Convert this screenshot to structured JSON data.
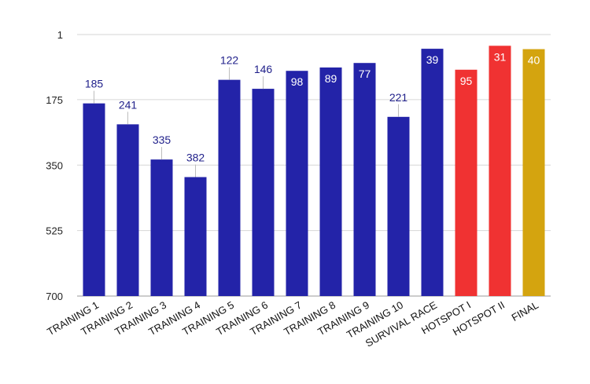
{
  "chart_data": {
    "type": "bar",
    "title": "",
    "xlabel": "",
    "ylabel": "",
    "y_inverted": true,
    "ylim": [
      1,
      700
    ],
    "yticks": [
      1,
      175,
      350,
      525,
      700
    ],
    "grid": true,
    "categories": [
      "TRAINING 1",
      "TRAINING 2",
      "TRAINING 3",
      "TRAINING 4",
      "TRAINING 5",
      "TRAINING 6",
      "TRAINING 7",
      "TRAINING 8",
      "TRAINING 9",
      "TRAINING 10",
      "SURVIVAL RACE",
      "HOTSPOT I",
      "HOTSPOT II",
      "FINAL"
    ],
    "values": [
      185,
      241,
      335,
      382,
      122,
      146,
      98,
      89,
      77,
      221,
      39,
      95,
      31,
      40
    ],
    "colors": [
      "#2323a8",
      "#2323a8",
      "#2323a8",
      "#2323a8",
      "#2323a8",
      "#2323a8",
      "#2323a8",
      "#2323a8",
      "#2323a8",
      "#2323a8",
      "#2323a8",
      "#f03232",
      "#f03232",
      "#d4a40f"
    ],
    "label_inside": [
      false,
      false,
      false,
      false,
      false,
      false,
      true,
      true,
      true,
      false,
      true,
      true,
      true,
      true
    ]
  }
}
